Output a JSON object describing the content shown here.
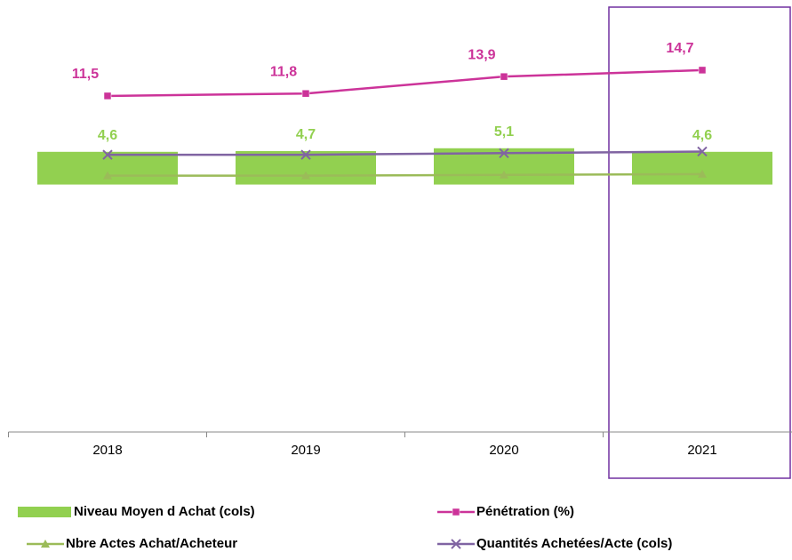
{
  "chart_data": {
    "type": "bar",
    "categories": [
      "2018",
      "2019",
      "2020",
      "2021"
    ],
    "ylim": [
      -34.8,
      24.7
    ],
    "y2lim": [
      -30.2,
      22.3
    ],
    "series": [
      {
        "name": "Niveau Moyen d Achat (cols)",
        "type": "bar",
        "color": "#92d050",
        "values": [
          4.6,
          4.7,
          5.1,
          4.6
        ],
        "value_labels": [
          "4,6",
          "4,7",
          "5,1",
          "4,6"
        ]
      },
      {
        "name": "Pénétration (%)",
        "type": "line",
        "marker": "square",
        "axis": "y2",
        "color": "#cc3399",
        "values": [
          11.5,
          11.8,
          13.9,
          14.7
        ],
        "value_labels": [
          "11,5",
          "11,8",
          "13,9",
          "14,7"
        ]
      },
      {
        "name": "Nbre Actes Achat/Acheteur",
        "type": "line",
        "marker": "triangle",
        "axis": "y2",
        "color": "#9bbb59",
        "values": [
          1.6,
          1.6,
          1.7,
          1.8
        ]
      },
      {
        "name": "Quantités Achetées/Acte (cols)",
        "type": "line",
        "marker": "x",
        "axis": "y2",
        "color": "#8064a2",
        "values": [
          4.2,
          4.2,
          4.4,
          4.6
        ]
      }
    ],
    "legend": "bottom"
  }
}
